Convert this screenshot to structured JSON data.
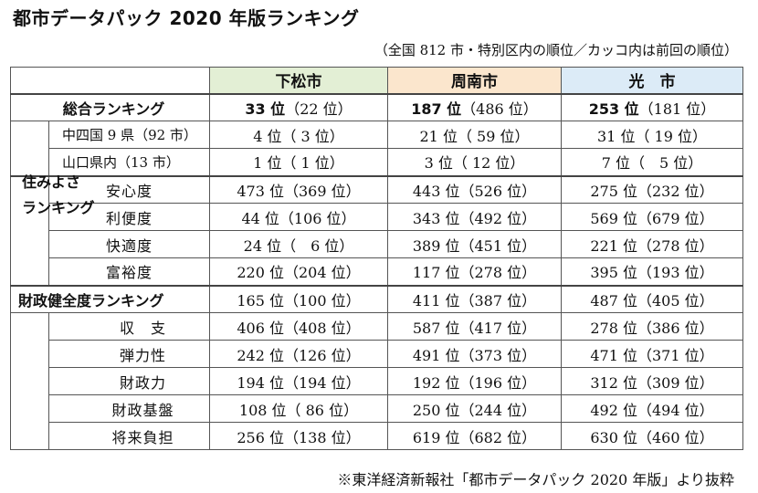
{
  "title": "都市データパック 2020 年版ランキング",
  "note": "（全国 812 市・特別区内の順位／カッコ内は前回の順位）",
  "source": "※東洋経済新報社「都市データパック 2020 年版」より抜粋",
  "cities": [
    "下松市",
    "周南市",
    "光　市"
  ],
  "colors": {
    "kudamatsu": "#e3efd5",
    "shunan": "#fbe6cd",
    "hikari": "#dcebf7"
  },
  "overall": {
    "label": "総合ランキング",
    "values": [
      "33 位（22 位）",
      "187 位（486 位）",
      "253 位（181 位）"
    ],
    "rows": [
      {
        "label": "中四国 9 県（92 市）",
        "values": [
          "4 位（ 3 位）",
          "21 位（ 59 位）",
          "31 位（ 19 位）"
        ]
      },
      {
        "label": "山口県内（13 市）",
        "values": [
          "1 位（ 1 位）",
          "3 位（ 12 位）",
          "7 位（　5 位）"
        ]
      }
    ]
  },
  "livability": {
    "label_line1": "住みよさ",
    "label_line2": "ランキング",
    "rows": [
      {
        "label": "安心度",
        "values": [
          "473 位（369 位）",
          "443 位（526 位）",
          "275 位（232 位）"
        ]
      },
      {
        "label": "利便度",
        "values": [
          "44 位（106 位）",
          "343 位（492 位）",
          "569 位（679 位）"
        ]
      },
      {
        "label": "快適度",
        "values": [
          "24 位（　6 位）",
          "389 位（451 位）",
          "221 位（278 位）"
        ]
      },
      {
        "label": "富裕度",
        "values": [
          "220 位（204 位）",
          "117 位（278 位）",
          "395 位（193 位）"
        ]
      }
    ]
  },
  "finance": {
    "label": "財政健全度ランキング",
    "values": [
      "165 位（100 位）",
      "411 位（387 位）",
      "487 位（405 位）"
    ],
    "rows": [
      {
        "label": "収　支",
        "values": [
          "406 位（408 位）",
          "587 位（417 位）",
          "278 位（386 位）"
        ]
      },
      {
        "label": "弾力性",
        "values": [
          "242 位（126 位）",
          "491 位（373 位）",
          "471 位（371 位）"
        ]
      },
      {
        "label": "財政力",
        "values": [
          "194 位（194 位）",
          "192 位（196 位）",
          "312 位（309 位）"
        ]
      },
      {
        "label": "財政基盤",
        "values": [
          "108 位（ 86 位）",
          "250 位（244 位）",
          "492 位（494 位）"
        ]
      },
      {
        "label": "将来負担",
        "values": [
          "256 位（138 位）",
          "619 位（682 位）",
          "630 位（460 位）"
        ]
      }
    ]
  }
}
